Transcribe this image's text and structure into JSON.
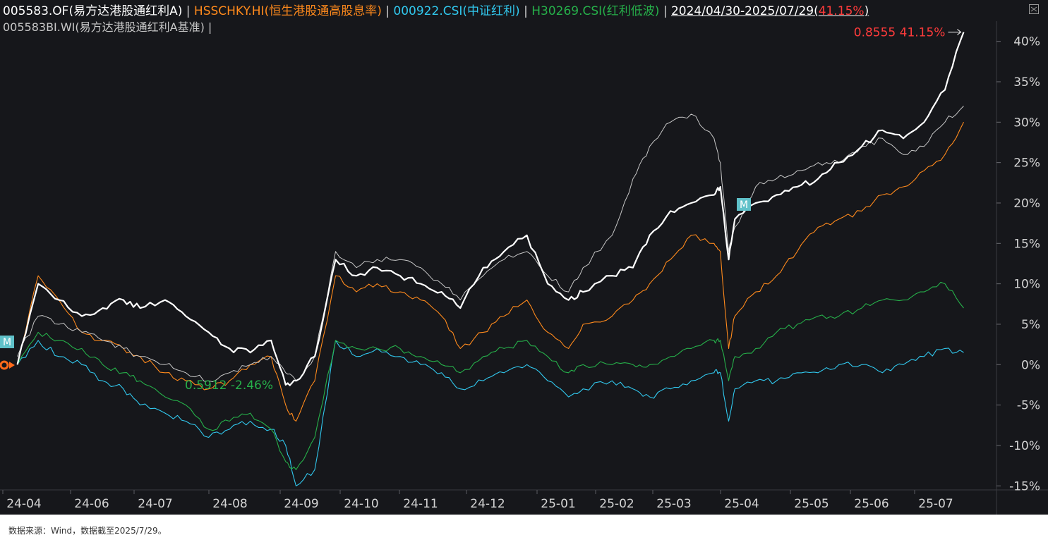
{
  "header": {
    "legend": [
      {
        "label": "005583.OF(易方达港股通红利A)",
        "color": "#ffffff"
      },
      {
        "label": "HSSCHKY.HI(恒生港股通高股息率)",
        "color": "#ff8a1c"
      },
      {
        "label": "000922.CSI(中证红利)",
        "color": "#31c8ee"
      },
      {
        "label": "H30269.CSI(红利低波)",
        "color": "#26b04a"
      }
    ],
    "range_text": "2024/04/30-2025/07/29",
    "range_return": "41.15%",
    "range_paren_open": "(",
    "range_paren_close": ")",
    "second_row": "005583BI.WI(易方达港股通红利A基准) |",
    "separator": "|"
  },
  "annotations": {
    "end_label": "0.8555 41.15%",
    "cursor_label": "0.5912 -2.46%",
    "marker_letter": "M"
  },
  "footer": {
    "source": "数据来源：Wind，数据截至2025/7/29。"
  },
  "colors": {
    "background": "#16171b",
    "grid": "#2b2c31",
    "fund": "#ffffff",
    "benchmark": "#c8c8c8",
    "hsschky": "#ff8a1c",
    "csi922": "#31c8ee",
    "h30269": "#26b04a",
    "highlight": "#ff3b3b",
    "marker": "#5fc1c9"
  },
  "chart_data": {
    "type": "line",
    "title": "",
    "xlabel": "",
    "ylabel": "",
    "ylim": [
      -15.5,
      42.5
    ],
    "y_ticks": [
      40,
      35,
      30,
      25,
      20,
      15,
      10,
      5,
      0,
      -5,
      -10,
      -15
    ],
    "y_tick_labels": [
      "40%",
      "35%",
      "30%",
      "25%",
      "20%",
      "15%",
      "10%",
      "5%",
      "0%",
      "-5%",
      "-10%",
      "-15%"
    ],
    "x_tick_labels": [
      "24-04",
      "24-06",
      "24-07",
      "24-08",
      "24-09",
      "24-10",
      "24-11",
      "24-12",
      "25-01",
      "25-02",
      "25-03",
      "25-04",
      "25-05",
      "25-06",
      "25-07"
    ],
    "x": [
      "2024-04-30",
      "2024-05-10",
      "2024-05-20",
      "2024-05-31",
      "2024-06-10",
      "2024-06-20",
      "2024-06-28",
      "2024-07-10",
      "2024-07-20",
      "2024-07-31",
      "2024-08-10",
      "2024-08-20",
      "2024-08-30",
      "2024-09-06",
      "2024-09-11",
      "2024-09-20",
      "2024-09-30",
      "2024-10-10",
      "2024-10-20",
      "2024-10-31",
      "2024-11-10",
      "2024-11-20",
      "2024-11-29",
      "2024-12-10",
      "2024-12-20",
      "2024-12-31",
      "2025-01-10",
      "2025-01-20",
      "2025-01-27",
      "2025-02-10",
      "2025-02-20",
      "2025-02-28",
      "2025-03-10",
      "2025-03-20",
      "2025-03-31",
      "2025-04-03",
      "2025-04-07",
      "2025-04-10",
      "2025-04-20",
      "2025-04-30",
      "2025-05-10",
      "2025-05-20",
      "2025-05-30",
      "2025-06-10",
      "2025-06-20",
      "2025-06-30",
      "2025-07-10",
      "2025-07-20",
      "2025-07-29"
    ],
    "series": [
      {
        "name": "005583.OF(易方达港股通红利A)",
        "values": [
          0,
          10,
          8,
          6,
          7,
          8,
          7,
          8,
          6,
          4,
          2,
          1.5,
          3,
          -2.5,
          -2,
          1,
          13,
          11,
          12,
          11,
          10,
          9,
          7,
          12,
          14,
          16,
          10,
          8,
          9,
          11,
          12,
          16,
          19,
          20,
          21,
          22,
          13,
          18,
          20,
          21,
          22,
          23,
          25,
          27,
          29,
          28,
          30,
          34,
          41.15
        ]
      },
      {
        "name": "005583BI.WI(易方达港股通红利A基准)",
        "values": [
          1,
          6,
          5,
          4,
          3,
          2,
          1,
          0,
          -1,
          -2,
          -1,
          0,
          1,
          -1,
          -2,
          1,
          14,
          12,
          13,
          13,
          12,
          10,
          8,
          11,
          13,
          14,
          11,
          9,
          12,
          16,
          23,
          27,
          30,
          31,
          28,
          25,
          14,
          17,
          22,
          23,
          24,
          25,
          25,
          27,
          28,
          26,
          27,
          30,
          32
        ]
      },
      {
        "name": "HSSCHKY.HI(恒生港股通高股息率)",
        "values": [
          0,
          11,
          8,
          4,
          3,
          2,
          1,
          -1,
          -2,
          -3,
          -2,
          0,
          1,
          -5,
          -7,
          -2,
          11,
          9,
          10,
          9,
          8,
          6,
          2,
          4,
          6,
          8,
          4,
          2,
          5,
          6,
          8,
          10,
          13,
          16,
          15,
          14,
          2,
          6,
          9,
          11,
          14,
          17,
          18,
          19,
          21,
          22,
          24,
          26,
          30
        ]
      },
      {
        "name": "000922.CSI(中证红利)",
        "values": [
          0,
          3,
          1,
          0,
          -2,
          -3,
          -5,
          -6,
          -7,
          -9,
          -8,
          -7,
          -8,
          -10,
          -15,
          -13,
          3,
          1,
          2,
          1,
          0,
          -1,
          -3,
          -2,
          -1,
          0,
          -2,
          -4,
          -3,
          -2,
          -3,
          -4,
          -3,
          -2,
          -1,
          -1,
          -7,
          -3,
          -2,
          -2,
          -1,
          -1,
          0,
          0,
          -1,
          0,
          1,
          2,
          1.5
        ]
      },
      {
        "name": "H30269.CSI(红利低波)",
        "values": [
          0,
          4,
          3,
          2,
          0,
          -1,
          -2,
          -4,
          -5,
          -8,
          -7,
          -6,
          -8,
          -12,
          -13,
          -9,
          3,
          2,
          2,
          2,
          1,
          0,
          -1,
          1,
          2,
          3,
          1,
          -1,
          0,
          0,
          0,
          0,
          1,
          2,
          3,
          3,
          -2,
          1,
          2,
          4,
          5,
          6,
          6,
          7,
          8,
          8,
          9,
          10,
          7
        ]
      }
    ],
    "grid": false,
    "legend_position": "top"
  }
}
